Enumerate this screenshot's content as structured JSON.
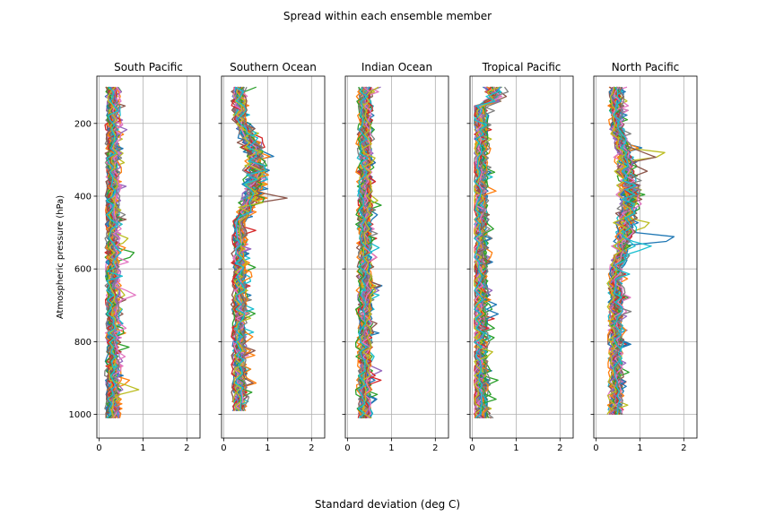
{
  "figure": {
    "suptitle": "Spread within each ensemble member",
    "xlabel": "Standard deviation (deg C)",
    "ylabel": "Atmospheric pressure (hPa)"
  },
  "chart_data": [
    {
      "type": "line",
      "title": "South Pacific",
      "xlim": [
        -0.05,
        2.3
      ],
      "ylim": [
        1065,
        70
      ],
      "y_inverted": true,
      "xticks": [
        0,
        1,
        2
      ],
      "yticks": [
        200,
        400,
        600,
        800,
        1000
      ],
      "grid": true,
      "legend": "none",
      "series_count": 40,
      "p_range": [
        100,
        1010
      ],
      "base_std": 0.32,
      "spikes": [
        {
          "p": 560,
          "std": 0.95
        },
        {
          "p": 520,
          "std": 0.75
        },
        {
          "p": 670,
          "std": 0.88
        },
        {
          "p": 930,
          "std": 0.97
        },
        {
          "p": 910,
          "std": 0.8
        },
        {
          "p": 110,
          "std": 0.55
        },
        {
          "p": 200,
          "std": 0.58
        },
        {
          "p": 770,
          "std": 0.68
        }
      ]
    },
    {
      "type": "line",
      "title": "Southern Ocean",
      "xlim": [
        -0.05,
        2.3
      ],
      "ylim": [
        1065,
        70
      ],
      "y_inverted": true,
      "xticks": [
        0,
        1,
        2
      ],
      "yticks": [
        200,
        400,
        600,
        800,
        1000
      ],
      "grid": true,
      "legend": "none",
      "series_count": 40,
      "p_range": [
        100,
        990
      ],
      "base_std": 0.35,
      "bulge": {
        "p_center": 330,
        "p_halfwidth": 140,
        "extra_std": 0.45
      },
      "spikes": [
        {
          "p": 405,
          "std": 1.45
        },
        {
          "p": 350,
          "std": 1.1
        },
        {
          "p": 260,
          "std": 1.05
        },
        {
          "p": 410,
          "std": 1.0
        }
      ]
    },
    {
      "type": "line",
      "title": "Indian Ocean",
      "xlim": [
        -0.05,
        2.3
      ],
      "ylim": [
        1065,
        70
      ],
      "y_inverted": true,
      "xticks": [
        0,
        1,
        2
      ],
      "yticks": [
        200,
        400,
        600,
        800,
        1000
      ],
      "grid": true,
      "legend": "none",
      "series_count": 40,
      "p_range": [
        100,
        1010
      ],
      "base_std": 0.38,
      "spikes": [
        {
          "p": 410,
          "std": 0.72
        },
        {
          "p": 880,
          "std": 0.78
        },
        {
          "p": 520,
          "std": 0.7
        },
        {
          "p": 120,
          "std": 0.68
        },
        {
          "p": 960,
          "std": 0.7
        },
        {
          "p": 240,
          "std": 0.65
        }
      ]
    },
    {
      "type": "line",
      "title": "Tropical Pacific",
      "xlim": [
        -0.05,
        2.3
      ],
      "ylim": [
        1065,
        70
      ],
      "y_inverted": true,
      "xticks": [
        0,
        1,
        2
      ],
      "yticks": [
        200,
        400,
        600,
        800,
        1000
      ],
      "grid": true,
      "legend": "none",
      "series_count": 40,
      "p_range": [
        100,
        1010
      ],
      "base_std": 0.2,
      "top_std": 0.55,
      "spikes": [
        {
          "p": 110,
          "std": 0.9
        },
        {
          "p": 125,
          "std": 0.8
        },
        {
          "p": 560,
          "std": 0.52
        },
        {
          "p": 660,
          "std": 0.47
        },
        {
          "p": 1010,
          "std": 0.48
        }
      ]
    },
    {
      "type": "line",
      "title": "North Pacific",
      "xlim": [
        -0.05,
        2.3
      ],
      "ylim": [
        1065,
        70
      ],
      "y_inverted": true,
      "xticks": [
        0,
        1,
        2
      ],
      "yticks": [
        200,
        400,
        600,
        800,
        1000
      ],
      "grid": true,
      "legend": "none",
      "series_count": 40,
      "p_range": [
        100,
        1000
      ],
      "base_std": 0.45,
      "bulge": {
        "p_center": 400,
        "p_halfwidth": 200,
        "extra_std": 0.35
      },
      "spikes": [
        {
          "p": 517,
          "std": 2.2
        },
        {
          "p": 285,
          "std": 1.85
        },
        {
          "p": 290,
          "std": 1.45
        },
        {
          "p": 478,
          "std": 1.35
        },
        {
          "p": 540,
          "std": 1.35
        },
        {
          "p": 330,
          "std": 1.2
        },
        {
          "p": 430,
          "std": 1.1
        }
      ]
    }
  ],
  "palette": [
    "#1f77b4",
    "#ff7f0e",
    "#2ca02c",
    "#d62728",
    "#9467bd",
    "#8c564b",
    "#e377c2",
    "#7f7f7f",
    "#bcbd22",
    "#17becf"
  ]
}
